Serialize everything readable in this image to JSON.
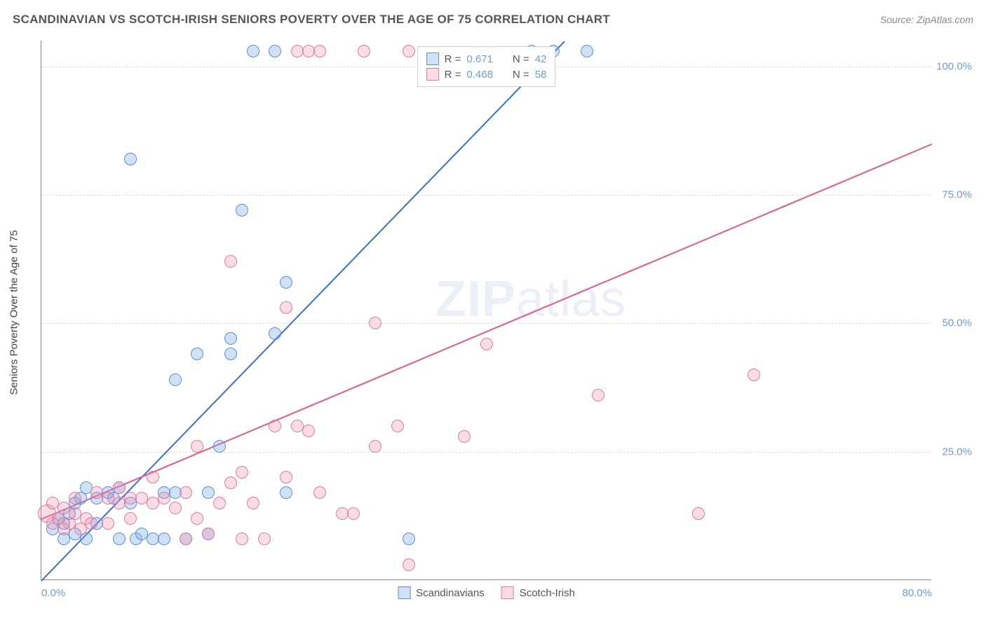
{
  "title": "SCANDINAVIAN VS SCOTCH-IRISH SENIORS POVERTY OVER THE AGE OF 75 CORRELATION CHART",
  "source_label": "Source: ZipAtlas.com",
  "y_axis_label": "Seniors Poverty Over the Age of 75",
  "watermark": {
    "part1": "ZIP",
    "part2": "atlas"
  },
  "chart": {
    "type": "scatter",
    "xlim": [
      0,
      80
    ],
    "ylim": [
      0,
      105
    ],
    "x_ticks": [
      {
        "value": 0,
        "label": "0.0%"
      },
      {
        "value": 80,
        "label": "80.0%"
      }
    ],
    "y_ticks": [
      {
        "value": 25,
        "label": "25.0%"
      },
      {
        "value": 50,
        "label": "50.0%"
      },
      {
        "value": 75,
        "label": "75.0%"
      },
      {
        "value": 100,
        "label": "100.0%"
      }
    ],
    "grid_color": "#dddddd",
    "axis_color": "#888888",
    "tick_label_color": "#6b9be8",
    "background_color": "#ffffff",
    "marker_radius": 9,
    "marker_stroke_width": 1.5,
    "line_width": 2.2,
    "series": [
      {
        "name": "Scandinavians",
        "color_fill": "rgba(120, 170, 230, 0.35)",
        "color_stroke": "#5a8fd6",
        "line_color": "#3a6fd0",
        "R": "0.671",
        "N": "42",
        "regression": {
          "x1": 0,
          "y1": 0,
          "x2": 47,
          "y2": 105
        },
        "points": [
          {
            "x": 1,
            "y": 10
          },
          {
            "x": 1.5,
            "y": 12
          },
          {
            "x": 2,
            "y": 8
          },
          {
            "x": 2,
            "y": 11
          },
          {
            "x": 2.5,
            "y": 13
          },
          {
            "x": 3,
            "y": 9
          },
          {
            "x": 3,
            "y": 15
          },
          {
            "x": 3.5,
            "y": 16
          },
          {
            "x": 4,
            "y": 8
          },
          {
            "x": 4,
            "y": 18
          },
          {
            "x": 5,
            "y": 11
          },
          {
            "x": 5,
            "y": 16
          },
          {
            "x": 6,
            "y": 17
          },
          {
            "x": 6.5,
            "y": 16
          },
          {
            "x": 7,
            "y": 18
          },
          {
            "x": 7,
            "y": 8
          },
          {
            "x": 8,
            "y": 15
          },
          {
            "x": 8,
            "y": 82
          },
          {
            "x": 8.5,
            "y": 8
          },
          {
            "x": 9,
            "y": 9
          },
          {
            "x": 10,
            "y": 8
          },
          {
            "x": 11,
            "y": 8
          },
          {
            "x": 11,
            "y": 17
          },
          {
            "x": 12,
            "y": 17
          },
          {
            "x": 12,
            "y": 39
          },
          {
            "x": 13,
            "y": 8
          },
          {
            "x": 14,
            "y": 44
          },
          {
            "x": 15,
            "y": 9
          },
          {
            "x": 15,
            "y": 17
          },
          {
            "x": 16,
            "y": 26
          },
          {
            "x": 17,
            "y": 44
          },
          {
            "x": 17,
            "y": 47
          },
          {
            "x": 18,
            "y": 72
          },
          {
            "x": 19,
            "y": 103
          },
          {
            "x": 21,
            "y": 48
          },
          {
            "x": 21,
            "y": 103
          },
          {
            "x": 22,
            "y": 17
          },
          {
            "x": 22,
            "y": 58
          },
          {
            "x": 33,
            "y": 8
          },
          {
            "x": 44,
            "y": 103
          },
          {
            "x": 46,
            "y": 103
          },
          {
            "x": 49,
            "y": 103
          }
        ]
      },
      {
        "name": "Scotch-Irish",
        "color_fill": "rgba(235, 140, 170, 0.30)",
        "color_stroke": "#e07ba0",
        "line_color": "#e6578b",
        "R": "0.468",
        "N": "58",
        "regression": {
          "x1": 0,
          "y1": 12,
          "x2": 80,
          "y2": 85
        },
        "points": [
          {
            "x": 0.5,
            "y": 13,
            "r": 13
          },
          {
            "x": 1,
            "y": 11
          },
          {
            "x": 1,
            "y": 15
          },
          {
            "x": 1.5,
            "y": 12
          },
          {
            "x": 2,
            "y": 10
          },
          {
            "x": 2,
            "y": 14
          },
          {
            "x": 2.5,
            "y": 11
          },
          {
            "x": 3,
            "y": 13
          },
          {
            "x": 3,
            "y": 16
          },
          {
            "x": 3.5,
            "y": 10
          },
          {
            "x": 4,
            "y": 12
          },
          {
            "x": 4.5,
            "y": 11
          },
          {
            "x": 5,
            "y": 17
          },
          {
            "x": 6,
            "y": 16
          },
          {
            "x": 6,
            "y": 11
          },
          {
            "x": 7,
            "y": 15
          },
          {
            "x": 7,
            "y": 18
          },
          {
            "x": 8,
            "y": 16
          },
          {
            "x": 8,
            "y": 12
          },
          {
            "x": 9,
            "y": 16
          },
          {
            "x": 10,
            "y": 15
          },
          {
            "x": 10,
            "y": 20
          },
          {
            "x": 11,
            "y": 16
          },
          {
            "x": 12,
            "y": 14
          },
          {
            "x": 13,
            "y": 8
          },
          {
            "x": 13,
            "y": 17
          },
          {
            "x": 14,
            "y": 12
          },
          {
            "x": 14,
            "y": 26
          },
          {
            "x": 15,
            "y": 9
          },
          {
            "x": 16,
            "y": 15
          },
          {
            "x": 17,
            "y": 19
          },
          {
            "x": 17,
            "y": 62
          },
          {
            "x": 18,
            "y": 8
          },
          {
            "x": 18,
            "y": 21
          },
          {
            "x": 19,
            "y": 15
          },
          {
            "x": 20,
            "y": 8
          },
          {
            "x": 21,
            "y": 30
          },
          {
            "x": 22,
            "y": 20
          },
          {
            "x": 22,
            "y": 53
          },
          {
            "x": 23,
            "y": 30
          },
          {
            "x": 23,
            "y": 103
          },
          {
            "x": 24,
            "y": 29
          },
          {
            "x": 24,
            "y": 103
          },
          {
            "x": 25,
            "y": 17
          },
          {
            "x": 25,
            "y": 103
          },
          {
            "x": 27,
            "y": 13
          },
          {
            "x": 28,
            "y": 13
          },
          {
            "x": 29,
            "y": 103
          },
          {
            "x": 30,
            "y": 26
          },
          {
            "x": 30,
            "y": 50
          },
          {
            "x": 32,
            "y": 30
          },
          {
            "x": 33,
            "y": 3
          },
          {
            "x": 33,
            "y": 103
          },
          {
            "x": 38,
            "y": 28
          },
          {
            "x": 40,
            "y": 46
          },
          {
            "x": 50,
            "y": 36
          },
          {
            "x": 59,
            "y": 13
          },
          {
            "x": 64,
            "y": 40
          }
        ]
      }
    ],
    "stats_box": {
      "rows": [
        {
          "swatch_fill": "rgba(120,170,230,0.35)",
          "swatch_stroke": "#5a8fd6",
          "R": "0.671",
          "N": "42"
        },
        {
          "swatch_fill": "rgba(235,140,170,0.30)",
          "swatch_stroke": "#e07ba0",
          "R": "0.468",
          "N": "58"
        }
      ],
      "r_label": "R =",
      "n_label": "N ="
    },
    "legend": [
      {
        "swatch_fill": "rgba(120,170,230,0.35)",
        "swatch_stroke": "#5a8fd6",
        "label": "Scandinavians"
      },
      {
        "swatch_fill": "rgba(235,140,170,0.30)",
        "swatch_stroke": "#e07ba0",
        "label": "Scotch-Irish"
      }
    ]
  }
}
